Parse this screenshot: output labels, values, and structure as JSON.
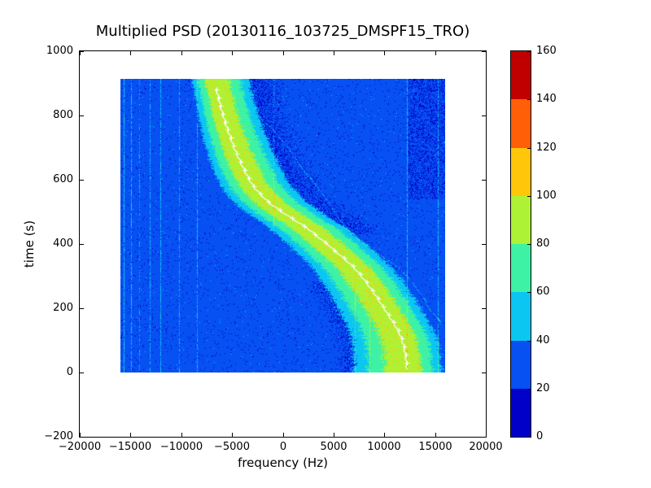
{
  "chart_data": {
    "type": "heatmap",
    "title": "Multiplied PSD (20130116_103725_DMSPF15_TRO)",
    "xlabel": "frequency (Hz)",
    "ylabel": "time (s)",
    "xlim": [
      -20000,
      20000
    ],
    "ylim": [
      -200,
      1000
    ],
    "grid": false,
    "xticks": {
      "values": [
        -20000,
        -15000,
        -10000,
        -5000,
        0,
        5000,
        10000,
        15000,
        20000
      ],
      "labels": [
        "−20000",
        "−15000",
        "−10000",
        "−5000",
        "0",
        "5000",
        "10000",
        "15000",
        "20000"
      ]
    },
    "yticks": {
      "values": [
        1000,
        800,
        600,
        400,
        200,
        0,
        -200
      ],
      "labels": [
        "1000",
        "800",
        "600",
        "400",
        "200",
        "0",
        "−200"
      ]
    },
    "colorbar": {
      "vmin": 0,
      "vmax": 160,
      "tick_values": [
        0,
        20,
        40,
        60,
        80,
        100,
        120,
        140,
        160
      ],
      "tick_labels": [
        "0",
        "20",
        "40",
        "60",
        "80",
        "100",
        "120",
        "140",
        "160"
      ],
      "levels": [
        0,
        20,
        40,
        60,
        80,
        100,
        120,
        140,
        160
      ],
      "colors": [
        "#0000c8",
        "#0750f2",
        "#0cc6f2",
        "#3df2a5",
        "#aef235",
        "#ffc60a",
        "#ff5f06",
        "#c00000"
      ]
    },
    "heatmap_model": {
      "seed": 1337,
      "f_range": [
        -16000,
        16000
      ],
      "t_range": [
        0,
        915
      ],
      "levels": {
        "background": 28,
        "cyan": 50,
        "green": 71,
        "yellow": 92
      },
      "band": {
        "left_hw_t0": 5300,
        "left_hw_slope": -3.6,
        "right_hw_base": 3400,
        "right_hw_bump": 400,
        "green_frac": 0.74,
        "yellow_frac": 0.42
      },
      "doppler_curve": {
        "color": "#ffffff",
        "marker": "+",
        "marker_step": 25,
        "t_range": [
          8,
          886
        ],
        "points": [
          [
            0,
            12250
          ],
          [
            60,
            12050
          ],
          [
            120,
            11500
          ],
          [
            200,
            10000
          ],
          [
            260,
            8700
          ],
          [
            330,
            6900
          ],
          [
            400,
            4400
          ],
          [
            450,
            2400
          ],
          [
            490,
            400
          ],
          [
            530,
            -1400
          ],
          [
            580,
            -2900
          ],
          [
            640,
            -3950
          ],
          [
            700,
            -4800
          ],
          [
            780,
            -5700
          ],
          [
            850,
            -6300
          ],
          [
            915,
            -6750
          ]
        ]
      },
      "secondary_arc": {
        "t_range": [
          150,
          800
        ],
        "points": [
          [
            150,
            15600
          ],
          [
            200,
            14400
          ],
          [
            250,
            13450
          ],
          [
            330,
            11200
          ],
          [
            400,
            8000
          ],
          [
            470,
            5750
          ],
          [
            520,
            4700
          ],
          [
            577,
            3400
          ],
          [
            640,
            1800
          ],
          [
            700,
            500
          ],
          [
            760,
            -1100
          ],
          [
            800,
            -2400
          ]
        ]
      },
      "interference_lines": [
        {
          "f": -15650,
          "strength": 20,
          "t_min": 0,
          "t_max": 915
        },
        {
          "f": -14950,
          "strength": 16,
          "t_min": 0,
          "t_max": 915
        },
        {
          "f": -14150,
          "strength": 10,
          "t_min": 0,
          "t_max": 915
        },
        {
          "f": -13100,
          "strength": 14,
          "t_min": 0,
          "t_max": 915
        },
        {
          "f": -12000,
          "strength": 18,
          "t_min": 0,
          "t_max": 915
        },
        {
          "f": -10150,
          "strength": 12,
          "t_min": 0,
          "t_max": 915
        },
        {
          "f": -8400,
          "strength": 14,
          "t_min": 0,
          "t_max": 915
        },
        {
          "f": -850,
          "strength": 12,
          "t_min": 450,
          "t_max": 915
        },
        {
          "f": 7100,
          "strength": 12,
          "t_min": 0,
          "t_max": 320
        },
        {
          "f": 8600,
          "strength": 14,
          "t_min": 0,
          "t_max": 340
        },
        {
          "f": 12250,
          "strength": 16,
          "t_min": 0,
          "t_max": 915
        },
        {
          "f": 15300,
          "strength": 18,
          "t_min": 0,
          "t_max": 915
        }
      ]
    }
  }
}
